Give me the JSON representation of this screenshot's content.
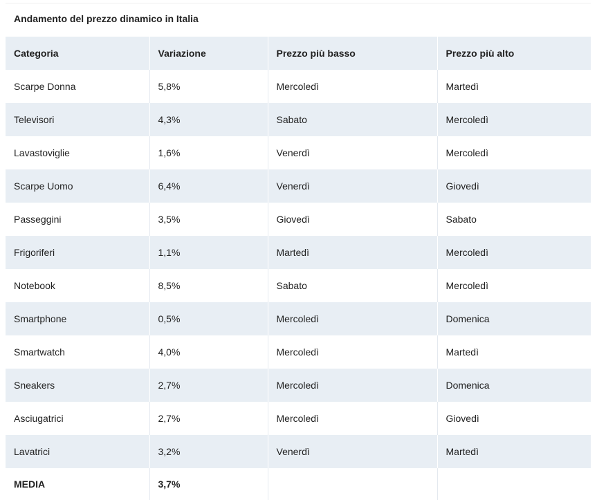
{
  "caption": "Andamento del prezzo dinamico in Italia",
  "table": {
    "headers": [
      "Categoria",
      "Variazione",
      "Prezzo più basso",
      "Prezzo più alto"
    ],
    "rows": [
      [
        "Scarpe Donna",
        "5,8%",
        "Mercoledì",
        "Martedì"
      ],
      [
        "Televisori",
        "4,3%",
        "Sabato",
        "Mercoledì"
      ],
      [
        "Lavastoviglie",
        "1,6%",
        "Venerdì",
        "Mercoledì"
      ],
      [
        "Scarpe Uomo",
        "6,4%",
        "Venerdì",
        "Giovedì"
      ],
      [
        "Passeggini",
        "3,5%",
        "Giovedì",
        "Sabato"
      ],
      [
        "Frigoriferi",
        "1,1%",
        "Martedì",
        "Mercoledì"
      ],
      [
        "Notebook",
        "8,5%",
        "Sabato",
        "Mercoledì"
      ],
      [
        "Smartphone",
        "0,5%",
        "Mercoledì",
        "Domenica"
      ],
      [
        "Smartwatch",
        "4,0%",
        "Mercoledì",
        "Martedì"
      ],
      [
        "Sneakers",
        "2,7%",
        "Mercoledì",
        "Domenica"
      ],
      [
        "Asciugatrici",
        "2,7%",
        "Mercoledì",
        "Giovedì"
      ],
      [
        "Lavatrici",
        "3,2%",
        "Venerdì",
        "Martedì"
      ]
    ],
    "summary": {
      "label": "MEDIA",
      "value": "3,7%"
    }
  },
  "colors": {
    "header_background": "#e8eef4",
    "stripe_background": "#e8eef4",
    "text": "#222222"
  }
}
